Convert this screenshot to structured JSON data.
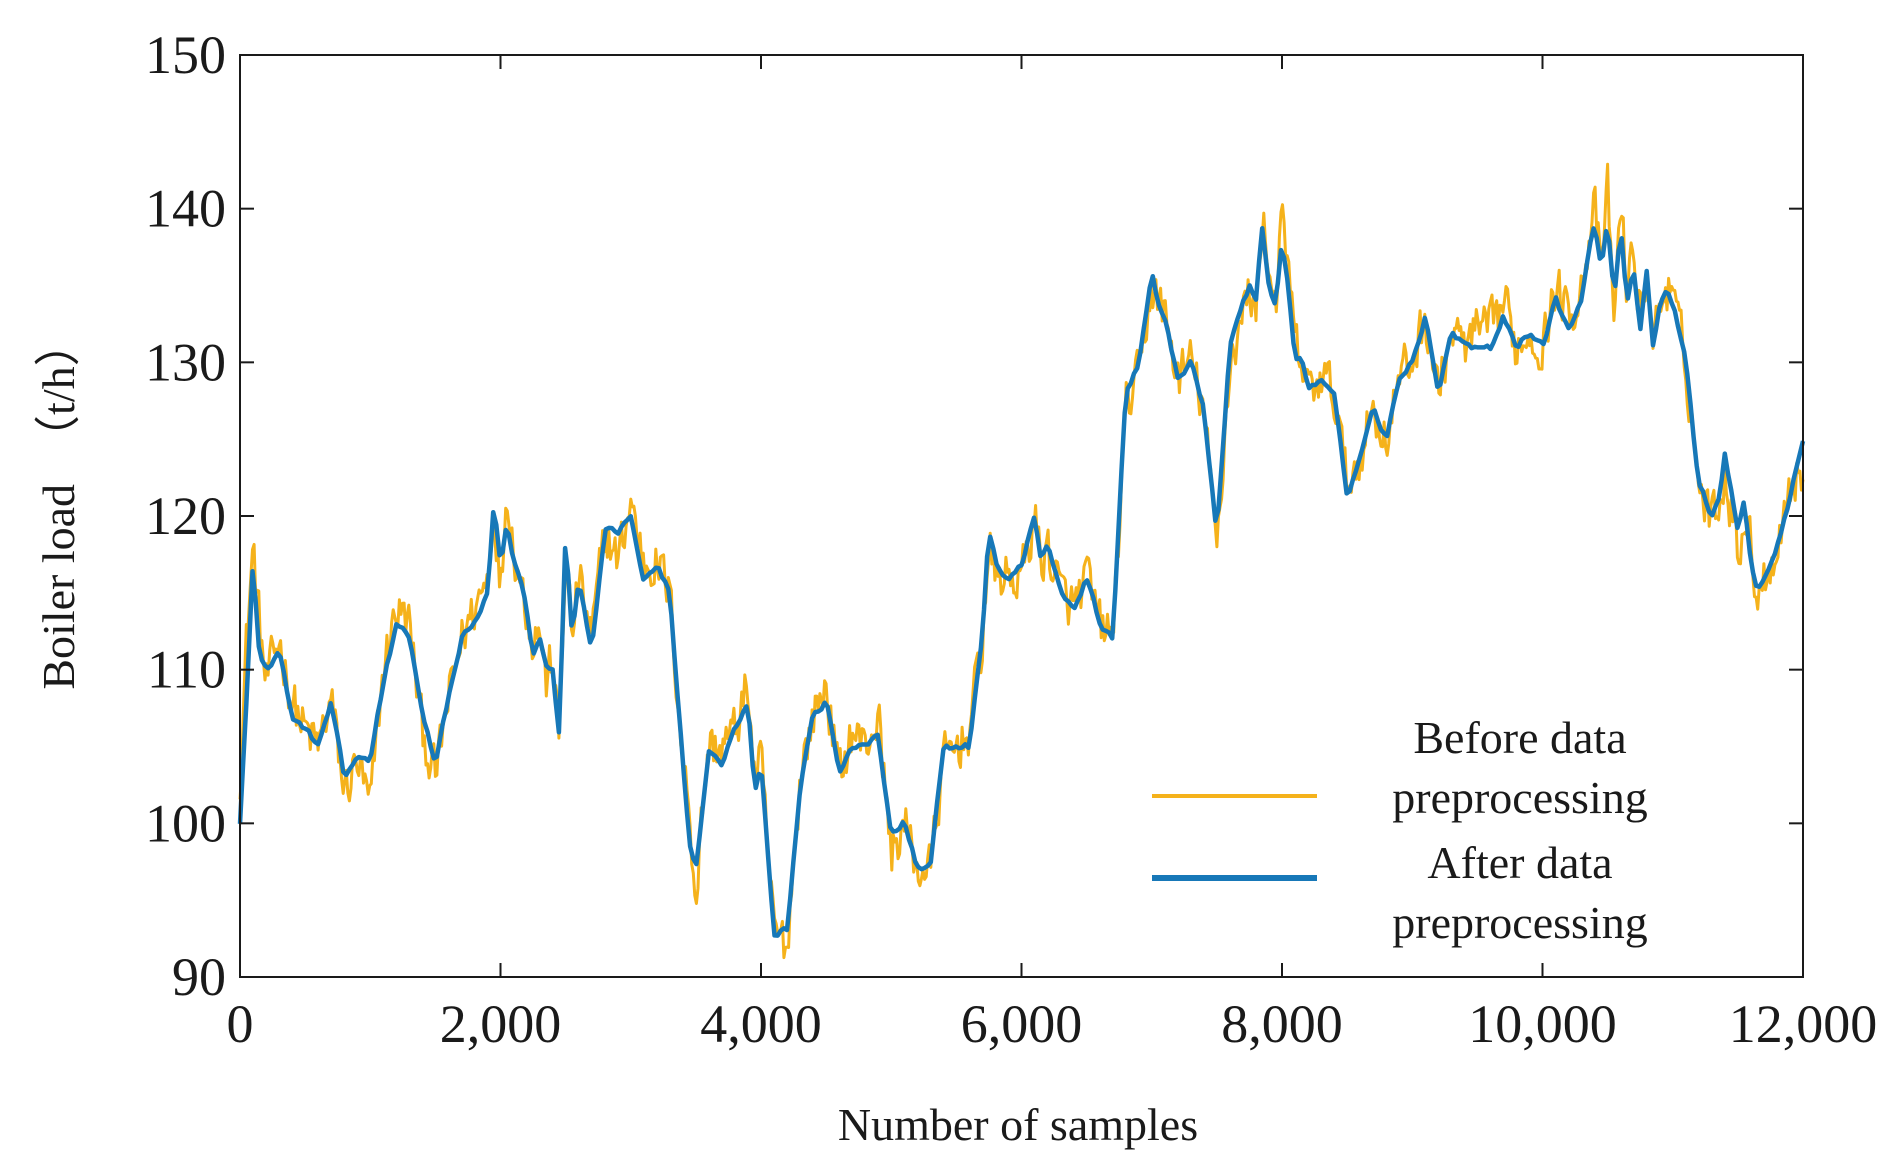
{
  "chart_data": {
    "type": "line",
    "title": "",
    "xlabel": "Number of samples",
    "ylabel": "Boiler load  （t/h）",
    "xlim": [
      0,
      12000
    ],
    "ylim": [
      90,
      150
    ],
    "xticks": [
      0,
      2000,
      4000,
      6000,
      8000,
      10000,
      12000
    ],
    "xtick_labels": [
      "0",
      "2,000",
      "4,000",
      "6,000",
      "8,000",
      "10,000",
      "12,000"
    ],
    "yticks": [
      90,
      100,
      110,
      120,
      130,
      140,
      150
    ],
    "ytick_labels": [
      "90",
      "100",
      "110",
      "120",
      "130",
      "140",
      "150"
    ],
    "grid": false,
    "legend_position": "bottom-right",
    "x": [
      0,
      50,
      100,
      150,
      200,
      300,
      400,
      500,
      600,
      700,
      800,
      900,
      1000,
      1100,
      1200,
      1300,
      1400,
      1500,
      1600,
      1700,
      1800,
      1900,
      1950,
      2000,
      2050,
      2100,
      2150,
      2200,
      2250,
      2300,
      2350,
      2400,
      2450,
      2500,
      2550,
      2600,
      2700,
      2800,
      2900,
      3000,
      3100,
      3200,
      3300,
      3400,
      3450,
      3500,
      3550,
      3600,
      3700,
      3800,
      3900,
      3950,
      4000,
      4100,
      4200,
      4300,
      4400,
      4500,
      4600,
      4700,
      4800,
      4900,
      5000,
      5100,
      5200,
      5300,
      5400,
      5500,
      5600,
      5700,
      5750,
      5800,
      5900,
      6000,
      6100,
      6150,
      6200,
      6300,
      6400,
      6500,
      6600,
      6700,
      6800,
      6900,
      7000,
      7050,
      7100,
      7150,
      7200,
      7300,
      7400,
      7450,
      7500,
      7550,
      7600,
      7700,
      7750,
      7800,
      7850,
      7900,
      7950,
      8000,
      8050,
      8100,
      8150,
      8200,
      8300,
      8400,
      8500,
      8600,
      8700,
      8800,
      8900,
      9000,
      9100,
      9200,
      9300,
      9400,
      9500,
      9600,
      9700,
      9800,
      9900,
      10000,
      10100,
      10200,
      10300,
      10350,
      10400,
      10450,
      10500,
      10550,
      10600,
      10650,
      10700,
      10750,
      10800,
      10850,
      10900,
      10950,
      11000,
      11100,
      11200,
      11250,
      11300,
      11350,
      11400,
      11500,
      11550,
      11600,
      11650,
      11700,
      11800,
      11900,
      12000
    ],
    "series": [
      {
        "name": "Before data preprocessing",
        "color": "#F5B21B",
        "values": [
          103,
          112,
          118,
          113,
          109,
          112,
          108,
          106,
          105,
          108,
          102,
          104,
          101,
          110,
          114,
          113,
          106,
          103,
          108,
          112,
          114,
          116,
          121,
          115,
          122,
          118,
          116,
          114,
          112,
          113,
          109,
          111,
          105,
          118,
          112,
          116,
          112,
          119,
          117,
          121,
          117,
          117,
          115,
          104,
          101,
          95,
          101,
          105,
          105,
          106,
          109,
          103,
          104,
          93,
          92,
          103,
          107,
          109,
          103,
          106,
          105,
          107,
          98,
          100,
          97,
          97,
          104,
          105,
          106,
          112,
          118,
          116,
          116,
          116,
          120,
          117,
          118,
          115,
          114,
          116,
          113,
          112,
          127,
          129,
          135,
          134,
          133,
          131,
          129,
          130,
          127,
          122,
          118,
          124,
          130,
          133,
          135,
          133,
          140,
          136,
          134,
          139,
          136,
          131,
          130,
          128,
          129,
          128,
          122,
          124,
          127,
          125,
          129,
          130,
          133,
          128,
          132,
          131,
          132,
          132,
          134,
          131,
          132,
          131,
          135,
          133,
          135,
          138,
          140,
          136,
          141,
          133,
          140,
          135,
          137,
          133,
          136,
          131,
          134,
          135,
          134,
          130,
          122,
          121,
          120,
          121,
          123,
          118,
          120,
          118,
          115,
          116,
          118,
          122,
          123
        ],
        "noise": 2.3
      },
      {
        "name": "After data preprocessing",
        "color": "#1778B8",
        "values": [
          100,
          108,
          117,
          111,
          110,
          111,
          107,
          106,
          105,
          108,
          103,
          104,
          104,
          109,
          113,
          112,
          107,
          104,
          108,
          112,
          113,
          115,
          121,
          117,
          120,
          117,
          116,
          114,
          111,
          112,
          110,
          110,
          106,
          119,
          112,
          116,
          111,
          119,
          119,
          120,
          116,
          117,
          115,
          104,
          99,
          97,
          101,
          105,
          104,
          106,
          108,
          102,
          104,
          93,
          93,
          102,
          107,
          108,
          103,
          105,
          105,
          106,
          99,
          100,
          97,
          97,
          105,
          105,
          105,
          112,
          119,
          117,
          116,
          117,
          120,
          117,
          118,
          115,
          114,
          116,
          113,
          112,
          128,
          130,
          136,
          134,
          133,
          131,
          129,
          130,
          127,
          123,
          119,
          125,
          131,
          134,
          135,
          134,
          139,
          135,
          134,
          138,
          135,
          130,
          130,
          128,
          129,
          128,
          121,
          124,
          127,
          125,
          129,
          130,
          133,
          128,
          132,
          131,
          131,
          131,
          133,
          131,
          132,
          131,
          134,
          132,
          134,
          137,
          139,
          136,
          139,
          134,
          139,
          134,
          136,
          132,
          136,
          131,
          134,
          135,
          134,
          130,
          122,
          121,
          120,
          121,
          124,
          119,
          121,
          117,
          115,
          116,
          118,
          121,
          125
        ],
        "noise": 0.5
      }
    ]
  }
}
